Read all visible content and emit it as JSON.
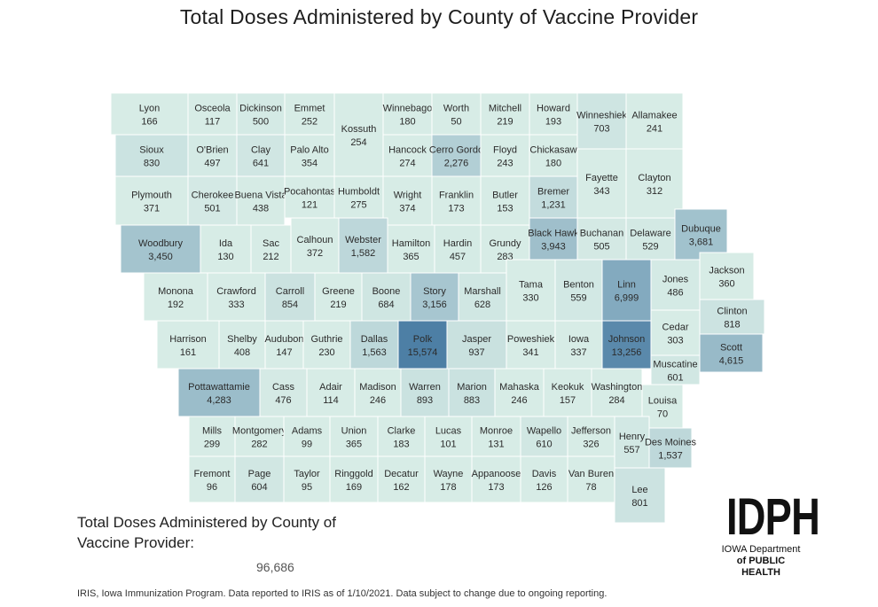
{
  "title": "Total Doses Administered by County of Vaccine Provider",
  "summary": {
    "label": "Total Doses Administered by County of Vaccine Provider:",
    "value": "96,686"
  },
  "source_note": "IRIS, Iowa Immunization Program. Data reported to IRIS as of 1/10/2021. Data subject to change due to ongoing reporting.",
  "logo": {
    "mark": "IDPH",
    "line1": "IOWA Department",
    "line2": "of PUBLIC HEALTH"
  },
  "colors": {
    "base": "#d7ece6",
    "scale_low": "#d7ece6",
    "scale_high": "#4d7fa5",
    "border": "#ffffff"
  },
  "counties": [
    {
      "name": "Lyon",
      "value": "166"
    },
    {
      "name": "Osceola",
      "value": "117"
    },
    {
      "name": "Dickinson",
      "value": "500"
    },
    {
      "name": "Emmet",
      "value": "252"
    },
    {
      "name": "Kossuth",
      "value": "254"
    },
    {
      "name": "Winnebago",
      "value": "180"
    },
    {
      "name": "Worth",
      "value": "50"
    },
    {
      "name": "Mitchell",
      "value": "219"
    },
    {
      "name": "Howard",
      "value": "193"
    },
    {
      "name": "Winneshiek",
      "value": "703"
    },
    {
      "name": "Allamakee",
      "value": "241"
    },
    {
      "name": "Sioux",
      "value": "830"
    },
    {
      "name": "O'Brien",
      "value": "497"
    },
    {
      "name": "Clay",
      "value": "641"
    },
    {
      "name": "Palo Alto",
      "value": "354"
    },
    {
      "name": "Hancock",
      "value": "274"
    },
    {
      "name": "Cerro Gordo",
      "value": "2,276"
    },
    {
      "name": "Floyd",
      "value": "243"
    },
    {
      "name": "Chickasaw",
      "value": "180"
    },
    {
      "name": "Fayette",
      "value": "343"
    },
    {
      "name": "Clayton",
      "value": "312"
    },
    {
      "name": "Plymouth",
      "value": "371"
    },
    {
      "name": "Cherokee",
      "value": "501"
    },
    {
      "name": "Buena Vista",
      "value": "438"
    },
    {
      "name": "Pocahontas",
      "value": "121"
    },
    {
      "name": "Humboldt",
      "value": "275"
    },
    {
      "name": "Wright",
      "value": "374"
    },
    {
      "name": "Franklin",
      "value": "173"
    },
    {
      "name": "Butler",
      "value": "153"
    },
    {
      "name": "Bremer",
      "value": "1,231"
    },
    {
      "name": "Woodbury",
      "value": "3,450"
    },
    {
      "name": "Ida",
      "value": "130"
    },
    {
      "name": "Sac",
      "value": "212"
    },
    {
      "name": "Calhoun",
      "value": "372"
    },
    {
      "name": "Webster",
      "value": "1,582"
    },
    {
      "name": "Hamilton",
      "value": "365"
    },
    {
      "name": "Hardin",
      "value": "457"
    },
    {
      "name": "Grundy",
      "value": "283"
    },
    {
      "name": "Black Hawk",
      "value": "3,943"
    },
    {
      "name": "Buchanan",
      "value": "505"
    },
    {
      "name": "Delaware",
      "value": "529"
    },
    {
      "name": "Dubuque",
      "value": "3,681"
    },
    {
      "name": "Monona",
      "value": "192"
    },
    {
      "name": "Crawford",
      "value": "333"
    },
    {
      "name": "Carroll",
      "value": "854"
    },
    {
      "name": "Greene",
      "value": "219"
    },
    {
      "name": "Boone",
      "value": "684"
    },
    {
      "name": "Story",
      "value": "3,156"
    },
    {
      "name": "Marshall",
      "value": "628"
    },
    {
      "name": "Tama",
      "value": "330"
    },
    {
      "name": "Benton",
      "value": "559"
    },
    {
      "name": "Linn",
      "value": "6,999"
    },
    {
      "name": "Jones",
      "value": "486"
    },
    {
      "name": "Jackson",
      "value": "360"
    },
    {
      "name": "Clinton",
      "value": "818"
    },
    {
      "name": "Harrison",
      "value": "161"
    },
    {
      "name": "Shelby",
      "value": "408"
    },
    {
      "name": "Audubon",
      "value": "147"
    },
    {
      "name": "Guthrie",
      "value": "230"
    },
    {
      "name": "Dallas",
      "value": "1,563"
    },
    {
      "name": "Polk",
      "value": "15,574"
    },
    {
      "name": "Jasper",
      "value": "937"
    },
    {
      "name": "Poweshiek",
      "value": "341"
    },
    {
      "name": "Iowa",
      "value": "337"
    },
    {
      "name": "Johnson",
      "value": "13,256"
    },
    {
      "name": "Cedar",
      "value": "303"
    },
    {
      "name": "Scott",
      "value": "4,615"
    },
    {
      "name": "Muscatine",
      "value": "601"
    },
    {
      "name": "Pottawattamie",
      "value": "4,283"
    },
    {
      "name": "Cass",
      "value": "476"
    },
    {
      "name": "Adair",
      "value": "114"
    },
    {
      "name": "Madison",
      "value": "246"
    },
    {
      "name": "Warren",
      "value": "893"
    },
    {
      "name": "Marion",
      "value": "883"
    },
    {
      "name": "Mahaska",
      "value": "246"
    },
    {
      "name": "Keokuk",
      "value": "157"
    },
    {
      "name": "Washington",
      "value": "284"
    },
    {
      "name": "Louisa",
      "value": "70"
    },
    {
      "name": "Mills",
      "value": "299"
    },
    {
      "name": "Montgomery",
      "value": "282"
    },
    {
      "name": "Adams",
      "value": "99"
    },
    {
      "name": "Union",
      "value": "365"
    },
    {
      "name": "Clarke",
      "value": "183"
    },
    {
      "name": "Lucas",
      "value": "101"
    },
    {
      "name": "Monroe",
      "value": "131"
    },
    {
      "name": "Wapello",
      "value": "610"
    },
    {
      "name": "Jefferson",
      "value": "326"
    },
    {
      "name": "Henry",
      "value": "557"
    },
    {
      "name": "Des Moines",
      "value": "1,537"
    },
    {
      "name": "Fremont",
      "value": "96"
    },
    {
      "name": "Page",
      "value": "604"
    },
    {
      "name": "Taylor",
      "value": "95"
    },
    {
      "name": "Ringgold",
      "value": "169"
    },
    {
      "name": "Decatur",
      "value": "162"
    },
    {
      "name": "Wayne",
      "value": "178"
    },
    {
      "name": "Appanoose",
      "value": "173"
    },
    {
      "name": "Davis",
      "value": "126"
    },
    {
      "name": "Van Buren",
      "value": "78"
    },
    {
      "name": "Lee",
      "value": "801"
    }
  ]
}
